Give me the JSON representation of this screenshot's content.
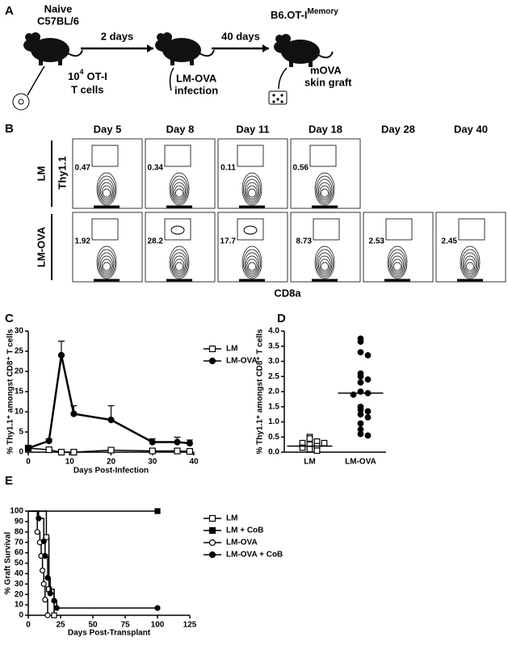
{
  "schematic": {
    "label": "A",
    "mouse1_title": [
      "Naive",
      "C57BL/6"
    ],
    "arrow1": "2 days",
    "arrow2": "40 days",
    "mouse3_title": "B6.OT-I",
    "mouse3_title_sup": "Memory",
    "transfer": {
      "base": "10",
      "exp": "4",
      "line1": "OT-I",
      "line2": "T cells"
    },
    "infection": [
      "LM-OVA",
      "infection"
    ],
    "graft": [
      "mOVA",
      "skin graft"
    ]
  },
  "flow": {
    "label": "B",
    "days": [
      "Day 5",
      "Day 8",
      "Day 11",
      "Day 18",
      "Day 28",
      "Day 40"
    ],
    "rows": [
      "LM",
      "LM-OVA"
    ],
    "y_label": "Thy1.1",
    "x_label": "CD8a",
    "gates": [
      [
        0.47,
        0.34,
        0.11,
        0.56
      ],
      [
        1.92,
        28.2,
        17.7,
        8.73,
        2.53,
        2.45
      ]
    ]
  },
  "chart_data": [
    {
      "type": "line",
      "label": "C",
      "xlabel": "Days Post-Infection",
      "ylabel": "% Thy1.1⁺ amongst CD8⁺ T cells",
      "x": [
        0,
        5,
        8,
        11,
        20,
        30,
        36,
        39
      ],
      "series": [
        {
          "name": "LM",
          "marker": "square",
          "fill": "open",
          "values": [
            1,
            0.6,
            0,
            0,
            0.5,
            0.3,
            0.3,
            0.2
          ],
          "errors": [
            0.2,
            0.2,
            0.1,
            0.1,
            0.2,
            0.1,
            0.1,
            0.1
          ]
        },
        {
          "name": "LM-OVA",
          "marker": "circle",
          "fill": "filled",
          "values": [
            1,
            2.8,
            24,
            9.5,
            8,
            2.5,
            2.5,
            2.2
          ],
          "errors": [
            0.3,
            0.5,
            3.5,
            2,
            3.5,
            0.8,
            1.2,
            0.8
          ]
        }
      ],
      "xlim": [
        0,
        40
      ],
      "xticks": [
        0,
        10,
        20,
        30,
        40
      ],
      "ylim": [
        0,
        30
      ],
      "yticks": [
        0,
        5,
        10,
        15,
        20,
        25,
        30
      ],
      "color": "#000000"
    },
    {
      "type": "dot",
      "label": "D",
      "ylabel": "% Thy1.1⁺ amongst CD8⁺ T cells",
      "categories": [
        "LM",
        "LM-OVA"
      ],
      "markers": [
        {
          "shape": "square",
          "fill": "open"
        },
        {
          "shape": "circle",
          "fill": "filled"
        }
      ],
      "values": [
        [
          0.5,
          0.45,
          0.35,
          0.3,
          0.3,
          0.25,
          0.2,
          0.15,
          0.1,
          0.05
        ],
        [
          3.75,
          3.65,
          3.3,
          3.2,
          2.6,
          2.5,
          2.4,
          2.3,
          2.0,
          1.95,
          1.9,
          1.5,
          1.4,
          1.35,
          1.25,
          1.15,
          0.95,
          0.75,
          0.6,
          0.55
        ]
      ],
      "means": [
        0.2,
        1.95
      ],
      "ylim": [
        0,
        4
      ],
      "yticks": [
        {
          "value": 0,
          "label": "0.0"
        },
        0.5,
        {
          "value": 1,
          "label": "1.0"
        },
        1.5,
        {
          "value": 2,
          "label": "2.0"
        },
        2.5,
        {
          "value": 3,
          "label": "3.0"
        },
        3.5,
        {
          "value": 4,
          "label": "4.0"
        }
      ]
    },
    {
      "type": "survival",
      "label": "E",
      "xlabel": "Days Post-Transplant",
      "ylabel": "% Graft Survival",
      "series": [
        {
          "name": "LM",
          "marker": "square",
          "fill": "open",
          "x": [
            0,
            14,
            16,
            20
          ],
          "values": [
            100,
            75,
            25,
            0
          ]
        },
        {
          "name": "LM + CoB",
          "marker": "square",
          "fill": "filled",
          "x": [
            0,
            100
          ],
          "values": [
            100,
            100
          ]
        },
        {
          "name": "LM-OVA",
          "marker": "circle",
          "fill": "open",
          "x": [
            0,
            7,
            9,
            10,
            11,
            12,
            13,
            15
          ],
          "values": [
            100,
            80,
            70,
            57,
            43,
            30,
            15,
            0
          ]
        },
        {
          "name": "LM-OVA + CoB",
          "marker": "circle",
          "fill": "filled",
          "x": [
            0,
            8,
            12,
            13,
            15,
            17,
            20,
            22,
            100
          ],
          "values": [
            100,
            93,
            71,
            57,
            36,
            21,
            14,
            7,
            7
          ]
        }
      ],
      "xlim": [
        0,
        125
      ],
      "xticks": [
        0,
        25,
        50,
        75,
        100,
        125
      ],
      "ylim": [
        0,
        100
      ],
      "yticks": [
        0,
        10,
        20,
        30,
        40,
        50,
        60,
        70,
        80,
        90,
        100
      ]
    }
  ]
}
